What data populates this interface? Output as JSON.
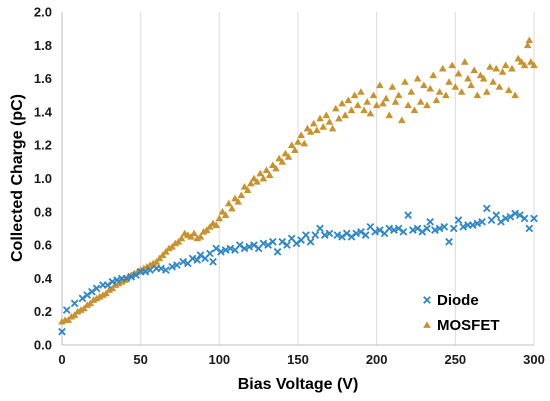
{
  "chart_data": {
    "type": "scatter",
    "title": "",
    "xlabel": "Bias Voltage (V)",
    "ylabel": "Collected Charge (pC)",
    "xlim": [
      0,
      300
    ],
    "ylim": [
      0,
      2.0
    ],
    "xticks": [
      0,
      50,
      100,
      150,
      200,
      250,
      300
    ],
    "yticks": [
      0.0,
      0.2,
      0.4,
      0.6,
      0.8,
      1.0,
      1.2,
      1.4,
      1.6,
      1.8,
      2.0
    ],
    "xtick_labels": [
      "0",
      "50",
      "100",
      "150",
      "200",
      "250",
      "300"
    ],
    "ytick_labels": [
      "0.0",
      "0.2",
      "0.4",
      "0.6",
      "0.8",
      "1.0",
      "1.2",
      "1.4",
      "1.6",
      "1.8",
      "2.0"
    ],
    "grid": "vertical",
    "legend_position": "bottom-right",
    "series": [
      {
        "name": "Diode",
        "marker": "x",
        "color": "#2e86c8",
        "points": [
          [
            0,
            0.08
          ],
          [
            3,
            0.21
          ],
          [
            8,
            0.25
          ],
          [
            13,
            0.28
          ],
          [
            16,
            0.3
          ],
          [
            19,
            0.32
          ],
          [
            22,
            0.34
          ],
          [
            26,
            0.36
          ],
          [
            29,
            0.36
          ],
          [
            32,
            0.38
          ],
          [
            35,
            0.39
          ],
          [
            38,
            0.4
          ],
          [
            41,
            0.4
          ],
          [
            44,
            0.41
          ],
          [
            47,
            0.42
          ],
          [
            50,
            0.44
          ],
          [
            53,
            0.44
          ],
          [
            56,
            0.45
          ],
          [
            60,
            0.46
          ],
          [
            63,
            0.46
          ],
          [
            66,
            0.45
          ],
          [
            70,
            0.47
          ],
          [
            73,
            0.48
          ],
          [
            77,
            0.5
          ],
          [
            80,
            0.49
          ],
          [
            83,
            0.52
          ],
          [
            86,
            0.51
          ],
          [
            88,
            0.54
          ],
          [
            91,
            0.52
          ],
          [
            94,
            0.55
          ],
          [
            96,
            0.5
          ],
          [
            98,
            0.58
          ],
          [
            101,
            0.56
          ],
          [
            104,
            0.57
          ],
          [
            107,
            0.58
          ],
          [
            110,
            0.57
          ],
          [
            113,
            0.6
          ],
          [
            116,
            0.58
          ],
          [
            119,
            0.59
          ],
          [
            122,
            0.6
          ],
          [
            125,
            0.58
          ],
          [
            128,
            0.61
          ],
          [
            131,
            0.6
          ],
          [
            134,
            0.62
          ],
          [
            137,
            0.56
          ],
          [
            140,
            0.62
          ],
          [
            143,
            0.6
          ],
          [
            146,
            0.64
          ],
          [
            149,
            0.61
          ],
          [
            152,
            0.63
          ],
          [
            155,
            0.66
          ],
          [
            158,
            0.62
          ],
          [
            161,
            0.66
          ],
          [
            164,
            0.7
          ],
          [
            167,
            0.66
          ],
          [
            170,
            0.67
          ],
          [
            175,
            0.66
          ],
          [
            178,
            0.65
          ],
          [
            181,
            0.67
          ],
          [
            184,
            0.65
          ],
          [
            187,
            0.67
          ],
          [
            190,
            0.68
          ],
          [
            193,
            0.66
          ],
          [
            196,
            0.71
          ],
          [
            199,
            0.68
          ],
          [
            202,
            0.69
          ],
          [
            205,
            0.67
          ],
          [
            208,
            0.7
          ],
          [
            211,
            0.69
          ],
          [
            214,
            0.7
          ],
          [
            217,
            0.68
          ],
          [
            220,
            0.78
          ],
          [
            223,
            0.69
          ],
          [
            226,
            0.7
          ],
          [
            229,
            0.68
          ],
          [
            232,
            0.7
          ],
          [
            234,
            0.74
          ],
          [
            237,
            0.69
          ],
          [
            240,
            0.7
          ],
          [
            243,
            0.71
          ],
          [
            246,
            0.62
          ],
          [
            249,
            0.7
          ],
          [
            252,
            0.75
          ],
          [
            255,
            0.71
          ],
          [
            258,
            0.72
          ],
          [
            261,
            0.72
          ],
          [
            264,
            0.73
          ],
          [
            267,
            0.74
          ],
          [
            270,
            0.82
          ],
          [
            273,
            0.75
          ],
          [
            276,
            0.78
          ],
          [
            279,
            0.74
          ],
          [
            282,
            0.76
          ],
          [
            285,
            0.77
          ],
          [
            288,
            0.79
          ],
          [
            291,
            0.78
          ],
          [
            294,
            0.76
          ],
          [
            297,
            0.7
          ],
          [
            300,
            0.76
          ]
        ]
      },
      {
        "name": "MOSFET",
        "marker": "triangle",
        "color": "#c8922e",
        "points": [
          [
            0,
            0.14
          ],
          [
            2,
            0.15
          ],
          [
            4,
            0.15
          ],
          [
            6,
            0.17
          ],
          [
            8,
            0.18
          ],
          [
            10,
            0.2
          ],
          [
            12,
            0.21
          ],
          [
            14,
            0.22
          ],
          [
            16,
            0.24
          ],
          [
            18,
            0.25
          ],
          [
            20,
            0.27
          ],
          [
            22,
            0.28
          ],
          [
            24,
            0.29
          ],
          [
            26,
            0.3
          ],
          [
            28,
            0.31
          ],
          [
            30,
            0.33
          ],
          [
            32,
            0.34
          ],
          [
            34,
            0.36
          ],
          [
            36,
            0.37
          ],
          [
            38,
            0.38
          ],
          [
            40,
            0.39
          ],
          [
            42,
            0.41
          ],
          [
            44,
            0.42
          ],
          [
            46,
            0.43
          ],
          [
            48,
            0.44
          ],
          [
            50,
            0.45
          ],
          [
            52,
            0.46
          ],
          [
            54,
            0.47
          ],
          [
            56,
            0.48
          ],
          [
            58,
            0.49
          ],
          [
            60,
            0.5
          ],
          [
            62,
            0.52
          ],
          [
            64,
            0.54
          ],
          [
            66,
            0.56
          ],
          [
            68,
            0.58
          ],
          [
            70,
            0.59
          ],
          [
            72,
            0.61
          ],
          [
            74,
            0.62
          ],
          [
            76,
            0.64
          ],
          [
            78,
            0.67
          ],
          [
            80,
            0.66
          ],
          [
            82,
            0.65
          ],
          [
            84,
            0.67
          ],
          [
            86,
            0.64
          ],
          [
            88,
            0.65
          ],
          [
            90,
            0.68
          ],
          [
            92,
            0.69
          ],
          [
            94,
            0.71
          ],
          [
            96,
            0.73
          ],
          [
            98,
            0.72
          ],
          [
            100,
            0.76
          ],
          [
            102,
            0.8
          ],
          [
            104,
            0.78
          ],
          [
            106,
            0.85
          ],
          [
            108,
            0.82
          ],
          [
            110,
            0.88
          ],
          [
            112,
            0.86
          ],
          [
            114,
            0.9
          ],
          [
            116,
            0.95
          ],
          [
            118,
            0.93
          ],
          [
            120,
            0.97
          ],
          [
            122,
            1.0
          ],
          [
            124,
            0.98
          ],
          [
            126,
            1.03
          ],
          [
            128,
            1.0
          ],
          [
            130,
            1.05
          ],
          [
            132,
            1.02
          ],
          [
            134,
            1.08
          ],
          [
            136,
            1.06
          ],
          [
            138,
            1.12
          ],
          [
            140,
            1.1
          ],
          [
            142,
            1.15
          ],
          [
            144,
            1.13
          ],
          [
            146,
            1.2
          ],
          [
            148,
            1.17
          ],
          [
            150,
            1.22
          ],
          [
            152,
            1.26
          ],
          [
            154,
            1.21
          ],
          [
            156,
            1.3
          ],
          [
            158,
            1.28
          ],
          [
            160,
            1.33
          ],
          [
            162,
            1.29
          ],
          [
            164,
            1.36
          ],
          [
            166,
            1.31
          ],
          [
            168,
            1.38
          ],
          [
            170,
            1.34
          ],
          [
            172,
            1.3
          ],
          [
            174,
            1.42
          ],
          [
            176,
            1.36
          ],
          [
            178,
            1.45
          ],
          [
            180,
            1.38
          ],
          [
            182,
            1.47
          ],
          [
            184,
            1.41
          ],
          [
            186,
            1.5
          ],
          [
            188,
            1.44
          ],
          [
            190,
            1.52
          ],
          [
            192,
            1.41
          ],
          [
            194,
            1.46
          ],
          [
            196,
            1.39
          ],
          [
            198,
            1.5
          ],
          [
            200,
            1.44
          ],
          [
            202,
            1.56
          ],
          [
            204,
            1.45
          ],
          [
            206,
            1.48
          ],
          [
            208,
            1.38
          ],
          [
            210,
            1.55
          ],
          [
            212,
            1.46
          ],
          [
            214,
            1.5
          ],
          [
            216,
            1.35
          ],
          [
            218,
            1.58
          ],
          [
            220,
            1.44
          ],
          [
            222,
            1.52
          ],
          [
            224,
            1.41
          ],
          [
            226,
            1.6
          ],
          [
            228,
            1.46
          ],
          [
            230,
            1.56
          ],
          [
            232,
            1.44
          ],
          [
            234,
            1.54
          ],
          [
            236,
            1.62
          ],
          [
            238,
            1.47
          ],
          [
            240,
            1.52
          ],
          [
            242,
            1.66
          ],
          [
            244,
            1.5
          ],
          [
            246,
            1.58
          ],
          [
            248,
            1.68
          ],
          [
            250,
            1.55
          ],
          [
            252,
            1.63
          ],
          [
            254,
            1.52
          ],
          [
            256,
            1.7
          ],
          [
            258,
            1.6
          ],
          [
            260,
            1.56
          ],
          [
            262,
            1.65
          ],
          [
            264,
            1.5
          ],
          [
            266,
            1.62
          ],
          [
            268,
            1.6
          ],
          [
            270,
            1.52
          ],
          [
            272,
            1.67
          ],
          [
            274,
            1.58
          ],
          [
            276,
            1.66
          ],
          [
            278,
            1.55
          ],
          [
            280,
            1.64
          ],
          [
            282,
            1.68
          ],
          [
            284,
            1.53
          ],
          [
            286,
            1.66
          ],
          [
            288,
            1.5
          ],
          [
            290,
            1.72
          ],
          [
            292,
            1.7
          ],
          [
            294,
            1.68
          ],
          [
            296,
            1.8
          ],
          [
            297,
            1.83
          ],
          [
            298,
            1.7
          ],
          [
            300,
            1.68
          ]
        ]
      }
    ]
  }
}
